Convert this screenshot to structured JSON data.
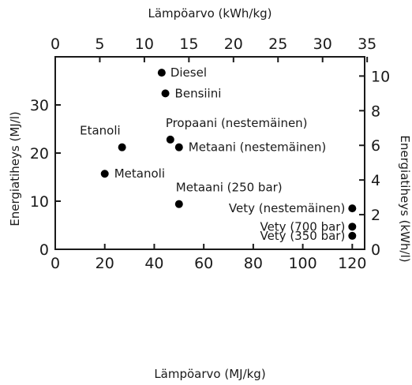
{
  "chart_data": {
    "type": "scatter",
    "x_bottom": {
      "label": "Lämpöarvo (MJ/kg)",
      "range": [
        0,
        125
      ],
      "ticks": [
        "0",
        "20",
        "40",
        "60",
        "80",
        "100",
        "120"
      ]
    },
    "x_top": {
      "label": "Lämpöarvo (kWh/kg)",
      "range": [
        0,
        34.72
      ],
      "ticks": [
        "0",
        "5",
        "10",
        "15",
        "20",
        "25",
        "30",
        "35"
      ]
    },
    "y_left": {
      "label": "Energiatiheys (MJ/l)",
      "range": [
        0,
        40
      ],
      "ticks": [
        "0",
        "10",
        "20",
        "30"
      ]
    },
    "y_right": {
      "label": "Energiatiheys (kWh/l)",
      "range": [
        0,
        11.11
      ],
      "ticks": [
        "0",
        "2",
        "4",
        "6",
        "8",
        "10"
      ]
    },
    "grid": false,
    "points": [
      {
        "label": "Diesel",
        "x": 43,
        "y": 36.7
      },
      {
        "label": "Bensiini",
        "x": 44.5,
        "y": 32.4
      },
      {
        "label": "Propaani (nestemäinen)",
        "x": 46.5,
        "y": 22.8
      },
      {
        "label": "Etanoli",
        "x": 27,
        "y": 21.2
      },
      {
        "label": "Metaani (nestemäinen)",
        "x": 50,
        "y": 21.2
      },
      {
        "label": "Metanoli",
        "x": 20,
        "y": 15.7
      },
      {
        "label": "Metaani (250 bar)",
        "x": 50,
        "y": 9.4
      },
      {
        "label": "Vety (nestemäinen)",
        "x": 120,
        "y": 8.5
      },
      {
        "label": "Vety (700 bar)",
        "x": 120,
        "y": 4.7
      },
      {
        "label": "Vety (350 bar)",
        "x": 120,
        "y": 2.8
      }
    ]
  }
}
